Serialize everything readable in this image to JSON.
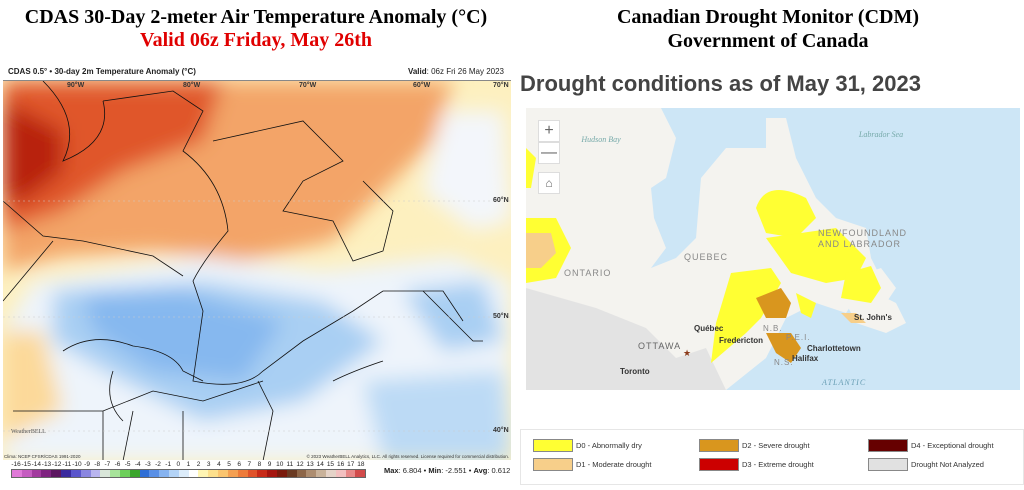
{
  "left": {
    "title": "CDAS 30-Day 2-meter Air Temperature Anomaly (°C)",
    "subtitle": "Valid 06z Friday, May 26th",
    "header_left": "CDAS 0.5° • 30-day 2m Temperature Anomaly (°C)",
    "header_valid_label": "Valid",
    "header_valid_value": ": 06z Fri 26 May 2023",
    "lon_labels": [
      "90°W",
      "80°W",
      "70°W",
      "60°W",
      "70°N"
    ],
    "lat_labels": [
      "60°N",
      "50°N",
      "40°N"
    ],
    "clim": "Clima: NCEP CFSR/CDAS 1991-2020",
    "copyright": "© 2023 WeatherBELL Analytics, LLC. All rights reserved. License required for commercial distribution.",
    "logo": "WeatherBELL",
    "colorbar_ticks": [
      "-16",
      "-15",
      "-14",
      "-13",
      "-12",
      "-11",
      "-10",
      "-9",
      "-8",
      "-7",
      "-6",
      "-5",
      "-4",
      "-3",
      "-2",
      "-1",
      "0",
      "1",
      "2",
      "3",
      "4",
      "5",
      "6",
      "7",
      "8",
      "9",
      "10",
      "11",
      "12",
      "13",
      "14",
      "15",
      "16",
      "17",
      "18"
    ],
    "colorbar_colors": [
      "#e07ad8",
      "#c55cc0",
      "#a23a9e",
      "#7f2380",
      "#5c1660",
      "#3a2a9e",
      "#5a55cc",
      "#8a86e0",
      "#b9b5ef",
      "#d9e6d9",
      "#a7e39a",
      "#6dcf5a",
      "#3aa52c",
      "#2f6fd6",
      "#5a90e6",
      "#86b3f0",
      "#b3d3f6",
      "#dcecfa",
      "#ffffff",
      "#fff5b3",
      "#fde08c",
      "#fbc56f",
      "#f5a052",
      "#ee7b3a",
      "#e0522a",
      "#c82a18",
      "#a5150f",
      "#7a1a0c",
      "#6a3a22",
      "#8d6648",
      "#ad8d70",
      "#c9b29a",
      "#e5d3c8",
      "#f3c0c0",
      "#e88888",
      "#d24b4b"
    ],
    "stats": {
      "max_label": "Max",
      "max": ": 6.804",
      "min_label": "Min",
      "min": ": -2.551",
      "avg_label": "Avg",
      "avg": ": 0.612"
    }
  },
  "right": {
    "title": "Canadian Drought Monitor (CDM)",
    "subtitle": "Government of Canada",
    "heading": "Drought conditions as of May 31, 2023",
    "zoom_in": "+",
    "zoom_out": "—",
    "seas": [
      "Hudson Bay",
      "Labrador Sea",
      "ATLANTIC"
    ],
    "regions": [
      "ONTARIO",
      "QUEBEC",
      "NEWFOUNDLAND AND LABRADOR",
      "OTTAWA",
      "N.B.",
      "P.E.I.",
      "N.S."
    ],
    "cities": [
      "Québec",
      "Fredericton",
      "Charlottetown",
      "Halifax",
      "St. John's",
      "Toronto"
    ],
    "legend": [
      {
        "label": "D0 - Abnormally dry",
        "color": "#ffff33"
      },
      {
        "label": "D1 - Moderate drought",
        "color": "#f7cf8a"
      },
      {
        "label": "D2 - Severe drought",
        "color": "#d9961e"
      },
      {
        "label": "D3 - Extreme drought",
        "color": "#cc0000"
      },
      {
        "label": "D4 - Exceptional drought",
        "color": "#660000"
      },
      {
        "label": "Drought Not Analyzed",
        "color": "#e1e1e1"
      }
    ]
  }
}
